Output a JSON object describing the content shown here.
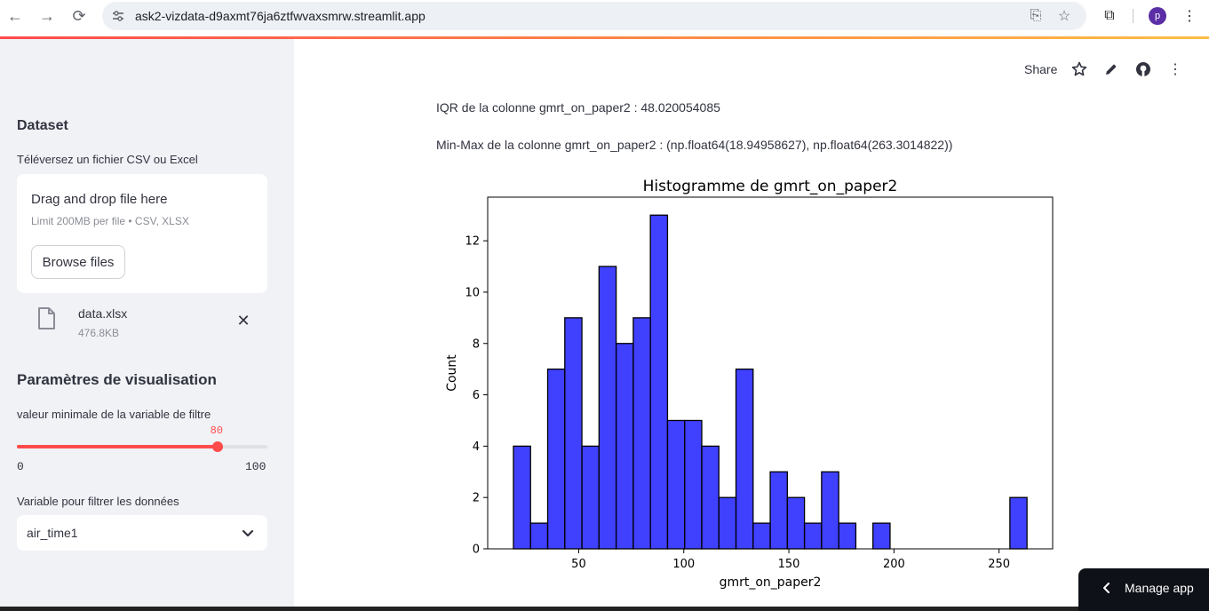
{
  "browser": {
    "url": "ask2-vizdata-d9axmt76ja6ztfwvaxsmrw.streamlit.app",
    "avatar_letter": "p"
  },
  "sidebar": {
    "dataset_heading": "Dataset",
    "upload_label": "Téléversez un fichier CSV ou Excel",
    "dropzone_title": "Drag and drop file here",
    "dropzone_limit": "Limit 200MB per file • CSV, XLSX",
    "browse_label": "Browse files",
    "file_name": "data.xlsx",
    "file_size": "476.8KB",
    "viz_heading": "Paramètres de visualisation",
    "slider_label": "valeur minimale de la variable de filtre",
    "slider_value": "80",
    "slider_min": "0",
    "slider_max": "100",
    "slider_fraction": 0.8,
    "select_label": "Variable pour filtrer les données",
    "select_value": "air_time1"
  },
  "toolbar": {
    "share_label": "Share"
  },
  "main": {
    "iqr_text": "IQR de la colonne gmrt_on_paper2 : 48.020054085",
    "minmax_text": "Min-Max de la colonne gmrt_on_paper2 : (np.float64(18.94958627), np.float64(263.3014822))"
  },
  "chart_data": {
    "type": "bar",
    "title": "Histogramme de gmrt_on_paper2",
    "xlabel": "gmrt_on_paper2",
    "ylabel": "Count",
    "xlim": [
      6.7,
      275.5
    ],
    "ylim": [
      0,
      13.7
    ],
    "xticks": [
      50,
      100,
      150,
      200,
      250
    ],
    "yticks": [
      0,
      2,
      4,
      6,
      8,
      10,
      12
    ],
    "bin_start": 18.95,
    "bin_width": 8.145,
    "values": [
      4,
      1,
      7,
      9,
      4,
      11,
      8,
      9,
      13,
      5,
      5,
      4,
      2,
      7,
      1,
      3,
      2,
      1,
      3,
      1,
      0,
      1,
      0,
      0,
      0,
      0,
      0,
      0,
      0,
      2
    ],
    "bar_color": "#0000ff"
  },
  "manage_app": {
    "label": "Manage app"
  }
}
